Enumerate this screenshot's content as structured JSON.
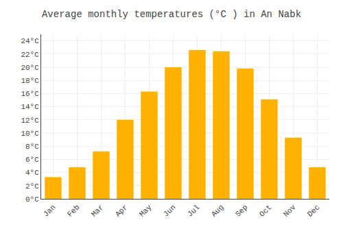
{
  "chart_data": {
    "type": "bar",
    "title": "Average monthly temperatures (°C ) in An Nabk",
    "categories": [
      "Jan",
      "Feb",
      "Mar",
      "Apr",
      "May",
      "Jun",
      "Jul",
      "Aug",
      "Sep",
      "Oct",
      "Nov",
      "Dec"
    ],
    "values": [
      3.3,
      4.8,
      7.2,
      12.0,
      16.3,
      20.0,
      22.6,
      22.4,
      19.8,
      15.1,
      9.3,
      4.8
    ],
    "color": "#FFB300",
    "ylim": [
      0,
      25
    ],
    "yticks": [
      {
        "value": 0,
        "label": "0°C"
      },
      {
        "value": 2,
        "label": "2°C"
      },
      {
        "value": 4,
        "label": "4°C"
      },
      {
        "value": 6,
        "label": "6°C"
      },
      {
        "value": 8,
        "label": "8°C"
      },
      {
        "value": 10,
        "label": "10°C"
      },
      {
        "value": 12,
        "label": "12°C"
      },
      {
        "value": 14,
        "label": "14°C"
      },
      {
        "value": 16,
        "label": "16°C"
      },
      {
        "value": 18,
        "label": "18°C"
      },
      {
        "value": 20,
        "label": "20°C"
      },
      {
        "value": 22,
        "label": "22°C"
      },
      {
        "value": 24,
        "label": "24°C"
      }
    ],
    "grid": true
  }
}
